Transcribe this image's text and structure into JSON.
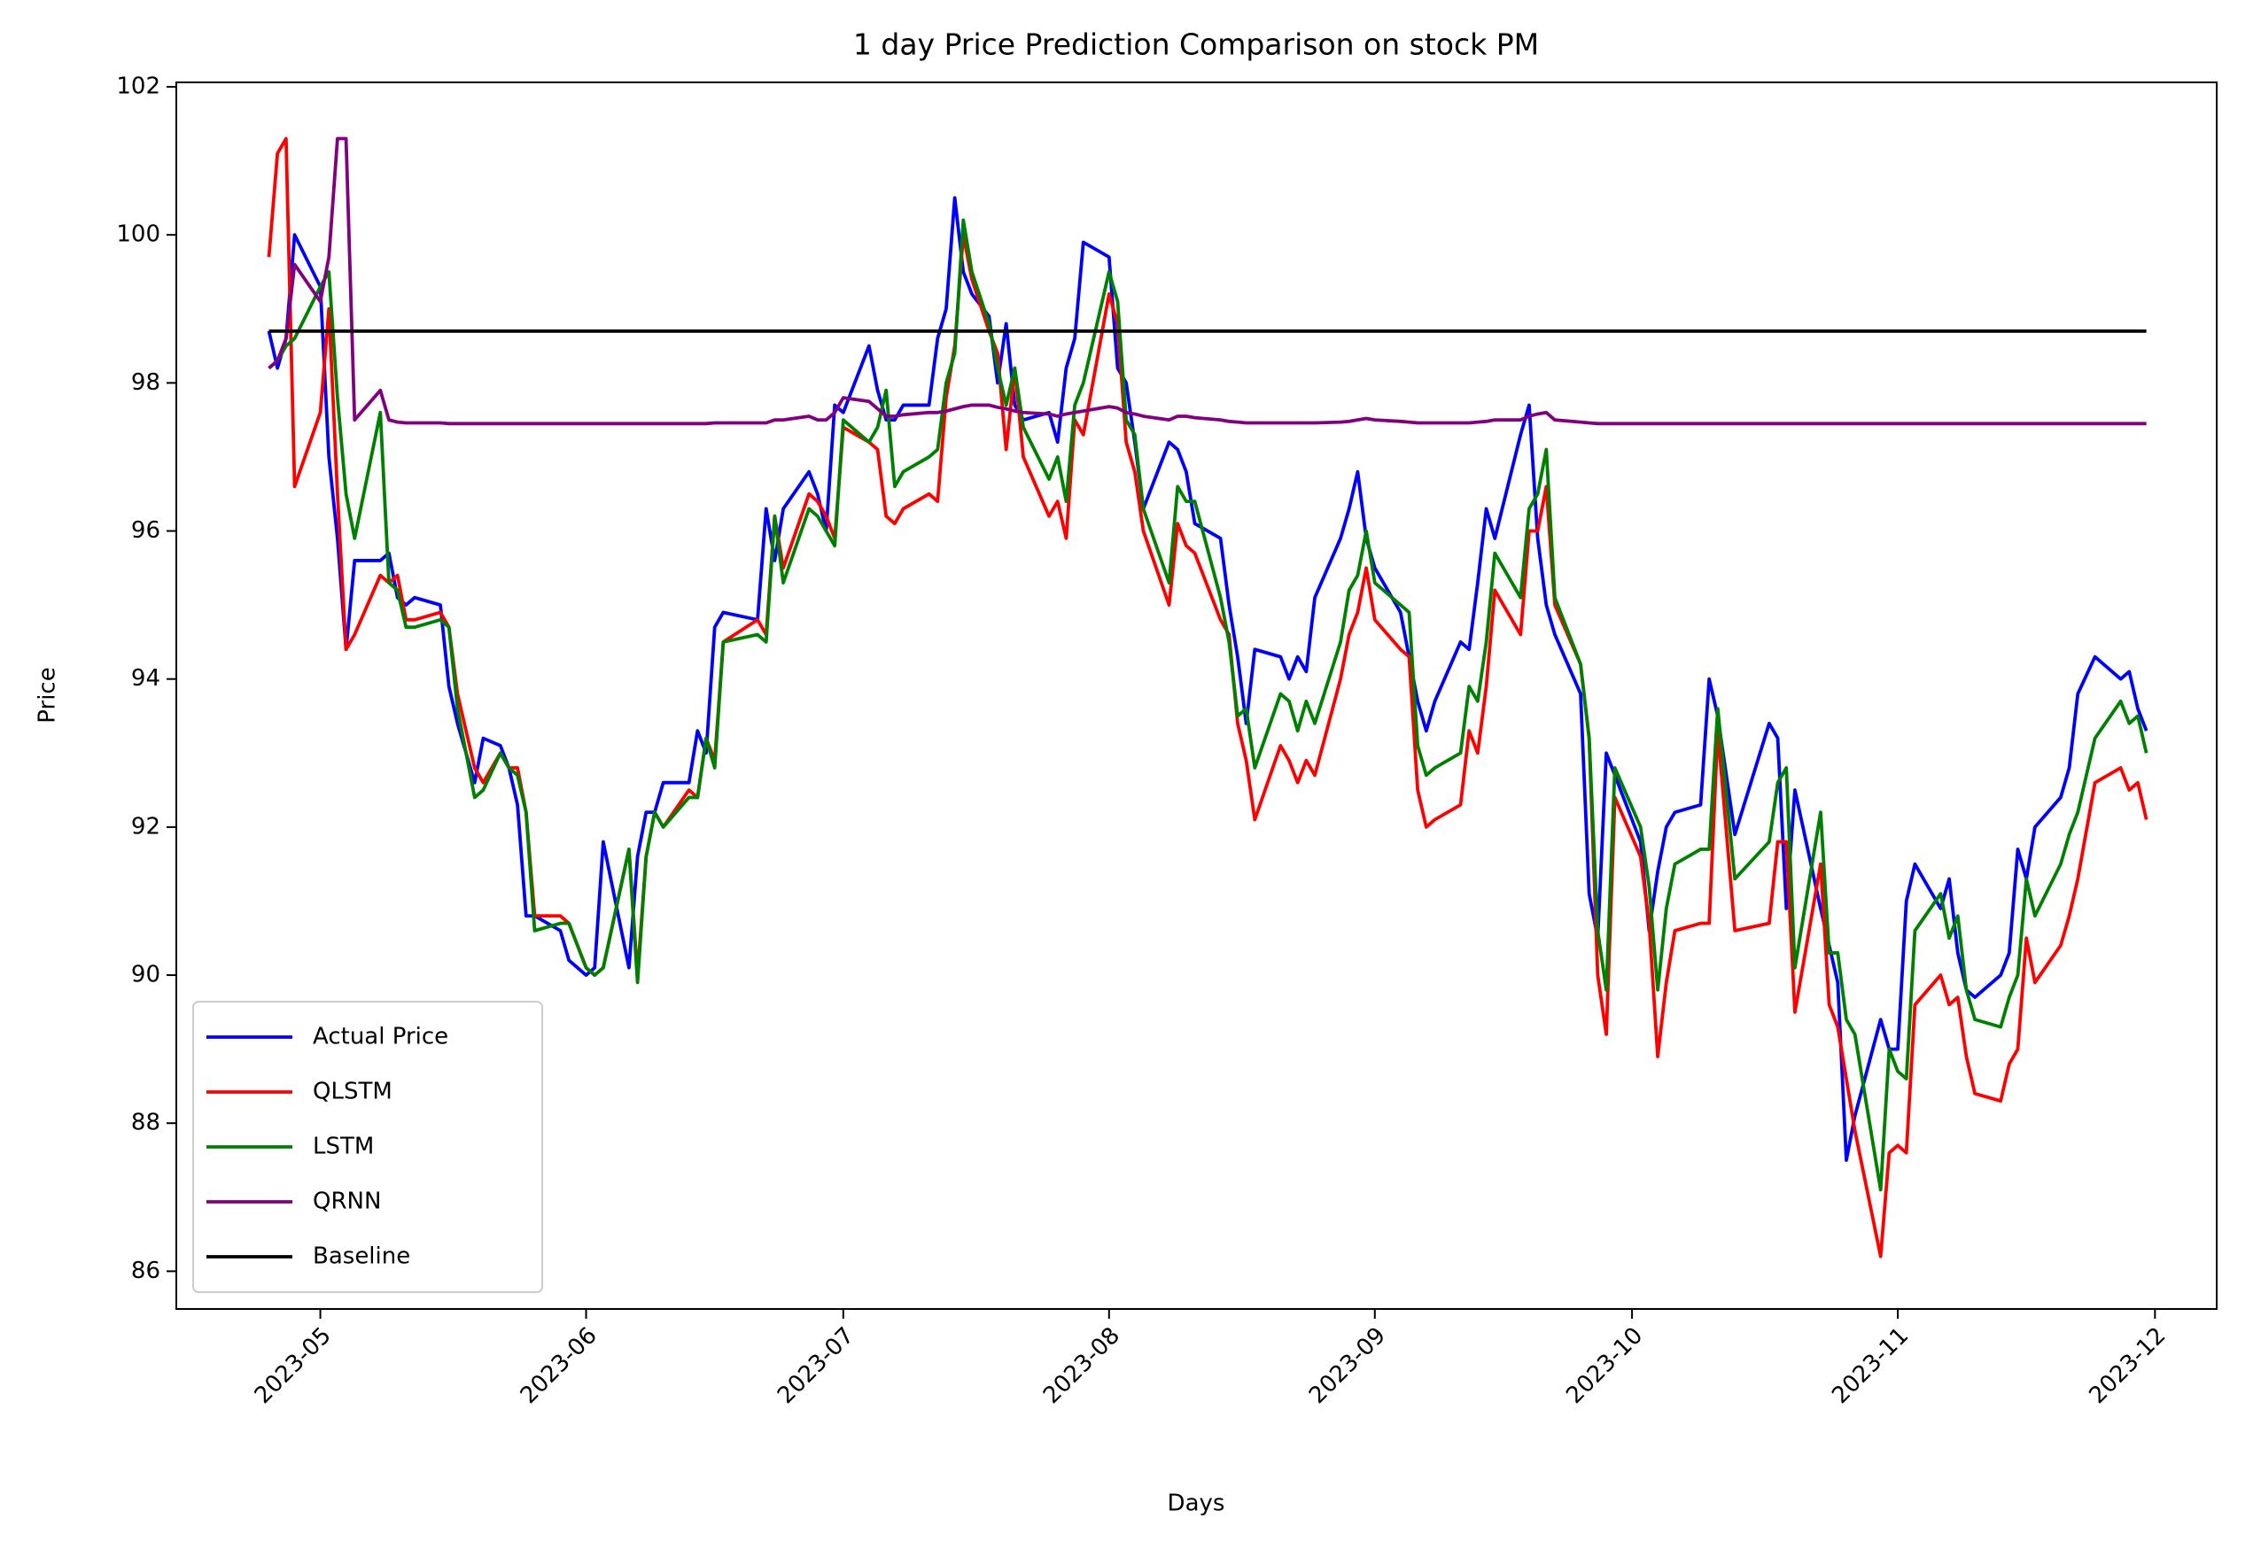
{
  "chart_data": {
    "type": "line",
    "title": "1 day Price Prediction Comparison on stock PM",
    "x_label": "Days",
    "y_label": "Price",
    "x": [
      115,
      116,
      117,
      118,
      121,
      122,
      123,
      124,
      125,
      128,
      129,
      130,
      131,
      132,
      135,
      136,
      137,
      139,
      140,
      142,
      143,
      144,
      145,
      146,
      149,
      150,
      152,
      153,
      154,
      157,
      158,
      159,
      160,
      161,
      164,
      165,
      166,
      167,
      168,
      172,
      173,
      174,
      175,
      178,
      179,
      180,
      181,
      182,
      185,
      186,
      187,
      188,
      189,
      192,
      193,
      194,
      195,
      196,
      197,
      199,
      200,
      201,
      202,
      203,
      206,
      207,
      208,
      209,
      210,
      213,
      214,
      215,
      216,
      217,
      220,
      221,
      222,
      223,
      226,
      227,
      228,
      229,
      230,
      233,
      234,
      235,
      236,
      237,
      240,
      241,
      242,
      243,
      244,
      247,
      248,
      249,
      250,
      251,
      254,
      255,
      256,
      257,
      258,
      261,
      262,
      263,
      264,
      265,
      268,
      269,
      270,
      271,
      272,
      275,
      276,
      277,
      278,
      279,
      282,
      283,
      284,
      286,
      290,
      291,
      292,
      293,
      296,
      297,
      298,
      299,
      300,
      303,
      304,
      305,
      306,
      307,
      310,
      311,
      312,
      313,
      314,
      317,
      318,
      319,
      320,
      321,
      324,
      325,
      326,
      328,
      331,
      332,
      333,
      334
    ],
    "series": [
      {
        "name": "Actual Price",
        "color": "#0000ff",
        "values": [
          98.7,
          98.2,
          98.6,
          100.0,
          99.3,
          97.0,
          95.9,
          94.4,
          95.6,
          95.6,
          95.7,
          95.1,
          95.0,
          95.1,
          95.0,
          93.9,
          93.4,
          92.6,
          93.2,
          93.1,
          92.8,
          92.3,
          90.8,
          90.8,
          90.6,
          90.2,
          90.0,
          90.1,
          91.8,
          90.1,
          91.6,
          92.2,
          92.2,
          92.6,
          92.6,
          93.3,
          93.0,
          94.7,
          94.9,
          94.8,
          96.3,
          95.6,
          96.3,
          96.8,
          96.5,
          96.0,
          97.7,
          97.6,
          98.5,
          97.9,
          97.5,
          97.5,
          97.7,
          97.7,
          98.6,
          99.0,
          100.5,
          99.5,
          99.2,
          98.9,
          98.0,
          98.8,
          97.7,
          97.5,
          97.6,
          97.2,
          98.2,
          98.6,
          99.9,
          99.7,
          98.2,
          98.0,
          97.2,
          96.3,
          97.2,
          97.1,
          96.8,
          96.1,
          95.9,
          95.0,
          94.3,
          93.4,
          94.4,
          94.3,
          94.0,
          94.3,
          94.1,
          95.1,
          95.9,
          96.3,
          96.8,
          95.9,
          95.5,
          94.9,
          94.3,
          93.7,
          93.3,
          93.7,
          94.5,
          94.4,
          95.3,
          96.3,
          95.9,
          97.3,
          97.7,
          95.9,
          95.0,
          94.6,
          93.8,
          91.1,
          90.5,
          93.0,
          92.7,
          91.8,
          90.6,
          91.4,
          92.0,
          92.2,
          92.3,
          94.0,
          93.5,
          91.9,
          93.4,
          93.2,
          90.9,
          92.5,
          90.9,
          90.4,
          89.9,
          87.5,
          88.1,
          89.4,
          89.0,
          89.0,
          91.0,
          91.5,
          90.9,
          91.3,
          90.3,
          89.8,
          89.7,
          90.0,
          90.3,
          91.7,
          91.3,
          92.0,
          92.4,
          92.8,
          93.8,
          94.3,
          94.0,
          94.1,
          93.6,
          93.3
        ]
      },
      {
        "name": "QLSTM",
        "color": "#ff0000",
        "values": [
          99.7,
          101.1,
          101.3,
          96.6,
          97.6,
          99.0,
          96.5,
          94.4,
          94.6,
          95.4,
          95.3,
          95.4,
          94.8,
          94.8,
          94.9,
          94.7,
          93.8,
          92.8,
          92.6,
          93.0,
          92.8,
          92.8,
          92.2,
          90.8,
          90.8,
          90.7,
          90.1,
          90.0,
          90.1,
          91.7,
          90.0,
          91.6,
          92.2,
          92.0,
          92.5,
          92.4,
          93.2,
          92.9,
          94.5,
          94.8,
          94.6,
          96.2,
          95.5,
          96.5,
          96.4,
          96.2,
          95.9,
          97.4,
          97.2,
          97.1,
          96.2,
          96.1,
          96.3,
          96.5,
          96.4,
          97.8,
          98.5,
          100.0,
          99.4,
          98.7,
          98.4,
          97.1,
          98.2,
          97.0,
          96.2,
          96.4,
          95.9,
          97.5,
          97.3,
          99.2,
          98.8,
          97.2,
          96.8,
          96.0,
          95.0,
          96.1,
          95.8,
          95.7,
          94.8,
          94.6,
          93.4,
          92.9,
          92.1,
          93.1,
          92.9,
          92.6,
          92.9,
          92.7,
          94.0,
          94.6,
          94.9,
          95.5,
          94.8,
          94.4,
          94.3,
          92.5,
          92.0,
          92.1,
          92.3,
          93.3,
          93.0,
          93.9,
          95.2,
          94.6,
          96.0,
          96.0,
          96.6,
          95.0,
          94.2,
          93.2,
          90.0,
          89.2,
          92.4,
          91.6,
          90.7,
          88.9,
          89.9,
          90.6,
          90.7,
          90.7,
          93.3,
          90.6,
          90.7,
          91.8,
          91.8,
          89.5,
          91.5,
          89.6,
          89.3,
          88.6,
          87.9,
          86.2,
          87.6,
          87.7,
          87.6,
          89.6,
          90.0,
          89.6,
          89.7,
          88.9,
          88.4,
          88.3,
          88.8,
          89.0,
          90.5,
          89.9,
          90.4,
          90.8,
          91.3,
          92.6,
          92.8,
          92.5,
          92.6,
          92.1
        ]
      },
      {
        "name": "LSTM",
        "color": "#008000",
        "values": [
          98.2,
          98.3,
          98.5,
          98.6,
          99.3,
          99.5,
          97.8,
          96.5,
          95.9,
          97.6,
          95.3,
          95.2,
          94.7,
          94.7,
          94.8,
          94.7,
          93.6,
          92.4,
          92.5,
          93.0,
          92.8,
          92.7,
          92.2,
          90.6,
          90.7,
          90.7,
          90.1,
          90.0,
          90.1,
          91.7,
          89.9,
          91.6,
          92.2,
          92.0,
          92.4,
          92.4,
          93.2,
          92.8,
          94.5,
          94.6,
          94.5,
          96.2,
          95.3,
          96.3,
          96.2,
          96.0,
          95.8,
          97.5,
          97.2,
          97.4,
          97.9,
          96.6,
          96.8,
          97.0,
          97.1,
          98.0,
          98.4,
          100.2,
          99.5,
          98.8,
          98.2,
          97.7,
          98.2,
          97.4,
          96.7,
          97.0,
          96.4,
          97.7,
          98.0,
          99.5,
          99.1,
          97.5,
          97.3,
          96.3,
          95.3,
          96.6,
          96.4,
          96.4,
          95.1,
          94.5,
          93.5,
          93.6,
          92.8,
          93.8,
          93.7,
          93.3,
          93.7,
          93.4,
          94.5,
          95.2,
          95.4,
          96.0,
          95.3,
          95.0,
          94.9,
          93.1,
          92.7,
          92.8,
          93.0,
          93.9,
          93.7,
          94.5,
          95.7,
          95.1,
          96.3,
          96.5,
          97.1,
          95.1,
          94.2,
          93.2,
          90.6,
          89.8,
          92.8,
          92.0,
          91.2,
          89.8,
          90.9,
          91.5,
          91.7,
          91.7,
          93.6,
          91.3,
          91.8,
          92.6,
          92.8,
          90.1,
          92.2,
          90.3,
          90.3,
          89.4,
          89.2,
          87.1,
          89.0,
          88.7,
          88.6,
          90.6,
          91.1,
          90.5,
          90.8,
          89.8,
          89.4,
          89.3,
          89.7,
          90.0,
          91.3,
          90.8,
          91.5,
          91.9,
          92.2,
          93.2,
          93.7,
          93.4,
          93.5,
          93.0
        ]
      },
      {
        "name": "QRNN",
        "color": "#800080",
        "values": [
          98.2,
          98.3,
          98.6,
          99.6,
          99.1,
          99.7,
          101.3,
          101.3,
          97.5,
          97.9,
          97.5,
          97.47,
          97.46,
          97.46,
          97.46,
          97.45,
          97.45,
          97.45,
          97.45,
          97.45,
          97.45,
          97.45,
          97.45,
          97.45,
          97.45,
          97.45,
          97.45,
          97.45,
          97.45,
          97.45,
          97.45,
          97.45,
          97.45,
          97.45,
          97.45,
          97.45,
          97.45,
          97.46,
          97.46,
          97.46,
          97.46,
          97.5,
          97.5,
          97.55,
          97.5,
          97.5,
          97.6,
          97.8,
          97.75,
          97.65,
          97.55,
          97.55,
          97.57,
          97.6,
          97.6,
          97.62,
          97.65,
          97.68,
          97.7,
          97.7,
          97.67,
          97.65,
          97.62,
          97.6,
          97.58,
          97.55,
          97.58,
          97.6,
          97.62,
          97.68,
          97.66,
          97.6,
          97.58,
          97.55,
          97.5,
          97.55,
          97.55,
          97.53,
          97.5,
          97.48,
          97.47,
          97.46,
          97.46,
          97.46,
          97.46,
          97.46,
          97.46,
          97.46,
          97.47,
          97.48,
          97.5,
          97.52,
          97.5,
          97.48,
          97.47,
          97.46,
          97.46,
          97.46,
          97.46,
          97.46,
          97.47,
          97.48,
          97.5,
          97.5,
          97.55,
          97.58,
          97.6,
          97.5,
          97.47,
          97.46,
          97.45,
          97.45,
          97.45,
          97.45,
          97.45,
          97.45,
          97.45,
          97.45,
          97.45,
          97.45,
          97.45,
          97.45,
          97.45,
          97.45,
          97.45,
          97.45,
          97.45,
          97.45,
          97.45,
          97.45,
          97.45,
          97.45,
          97.45,
          97.45,
          97.45,
          97.45,
          97.45,
          97.45,
          97.45,
          97.45,
          97.45,
          97.45,
          97.45,
          97.45,
          97.45,
          97.45,
          97.45,
          97.45,
          97.45,
          97.45,
          97.45,
          97.45,
          97.45,
          97.45
        ]
      },
      {
        "name": "Baseline",
        "color": "#000000",
        "x": [
          115,
          334
        ],
        "values": [
          98.7,
          98.7
        ]
      }
    ],
    "xlim": [
      104.2,
      342.2
    ],
    "ylim": [
      85.49,
      102.06
    ],
    "xticks": [
      {
        "value": 121,
        "label": "2023-05"
      },
      {
        "value": 152,
        "label": "2023-06"
      },
      {
        "value": 182,
        "label": "2023-07"
      },
      {
        "value": 213,
        "label": "2023-08"
      },
      {
        "value": 244,
        "label": "2023-09"
      },
      {
        "value": 274,
        "label": "2023-10"
      },
      {
        "value": 305,
        "label": "2023-11"
      },
      {
        "value": 335,
        "label": "2023-12"
      }
    ],
    "yticks": [
      86,
      88,
      90,
      92,
      94,
      96,
      98,
      100,
      102
    ],
    "grid": false,
    "legend": "lower left"
  }
}
